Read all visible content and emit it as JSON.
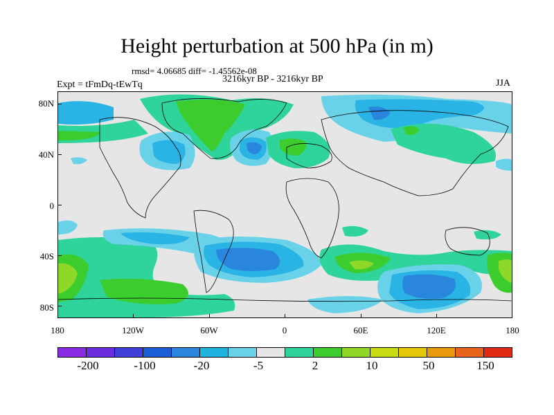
{
  "title": "Height perturbation at 500 hPa (in m)",
  "stats_line": "rmsd= 4.06685 diff= -1.45562e-08",
  "period": "3216kyr BP - 3216kyr BP",
  "experiment": "Expt = tFmDq-tEwTq",
  "season": "JJA",
  "lat_labels": [
    "80N",
    "40N",
    "0",
    "40S",
    "80S"
  ],
  "lon_labels": [
    "180",
    "120W",
    "60W",
    "0",
    "60E",
    "120E",
    "180"
  ],
  "colorbar": {
    "labels": [
      "-200",
      "-100",
      "-20",
      "-5",
      "2",
      "10",
      "50",
      "150"
    ],
    "colors": [
      "#8a2be2",
      "#6a2ee0",
      "#4040d8",
      "#1a5fd8",
      "#2a86dc",
      "#1fb4e0",
      "#6ad2e8",
      "#e6e6e6",
      "#2ed49a",
      "#3ccc2e",
      "#8fd82a",
      "#c8dc14",
      "#e6c80a",
      "#e89a0c",
      "#e8641a",
      "#e02a14"
    ]
  },
  "map_colors": {
    "background": "#e6e6e6",
    "light_blue": "#6ad2e8",
    "mid_blue": "#2ab4e6",
    "blue": "#2a86dc",
    "dark_blue": "#1a5fd8",
    "light_green": "#2ed49a",
    "green": "#3ccc2e",
    "yellow_green": "#8fd82a"
  }
}
